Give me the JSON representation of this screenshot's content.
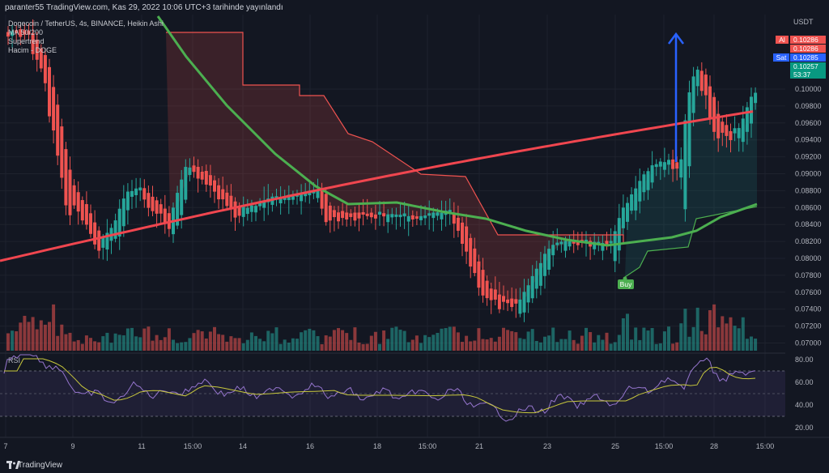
{
  "header": {
    "publish_info": "paranter55 TradingView.com, Kas 29, 2022 10:06 UTC+3 tarihinde yayınlandı"
  },
  "legend": {
    "symbol": "Dogecoin / TetherUS, 4s, BINANCE, Heikin Ashi",
    "ma": "MA 50/200",
    "supertrend": "Supertrend",
    "volume": "Hacim - DOGE"
  },
  "price_axis": {
    "currency": "USDT",
    "ticks": [
      "0.10000",
      "0.09800",
      "0.09600",
      "0.09400",
      "0.09200",
      "0.09000",
      "0.08800",
      "0.08600",
      "0.08400",
      "0.08200",
      "0.08000",
      "0.07800",
      "0.07600",
      "0.07400",
      "0.07200",
      "0.07000"
    ],
    "ask_label": "Al",
    "ask_price": "0.10286",
    "mid_price": "0.10286",
    "bid_label": "Sat",
    "bid_price": "0.10285",
    "last_price": "0.10257",
    "countdown": "53:37"
  },
  "time_axis": {
    "ticks": [
      "7",
      "9",
      "11",
      "15:00",
      "14",
      "16",
      "18",
      "15:00",
      "21",
      "23",
      "25",
      "15:00",
      "28",
      "15:00"
    ]
  },
  "rsi": {
    "label": "RSI",
    "ticks": [
      "80.00",
      "60.00",
      "40.00",
      "20.00"
    ]
  },
  "signal": {
    "label": "Buy"
  },
  "footer": {
    "brand": "TradingView"
  },
  "colors": {
    "up": "#26a69a",
    "down": "#ef5350",
    "ma50": "#4caf50",
    "ma200": "#f0464f",
    "rsi": "#9575cd",
    "rsi_ma": "#c8c83c",
    "arrow": "#2962ff"
  }
}
